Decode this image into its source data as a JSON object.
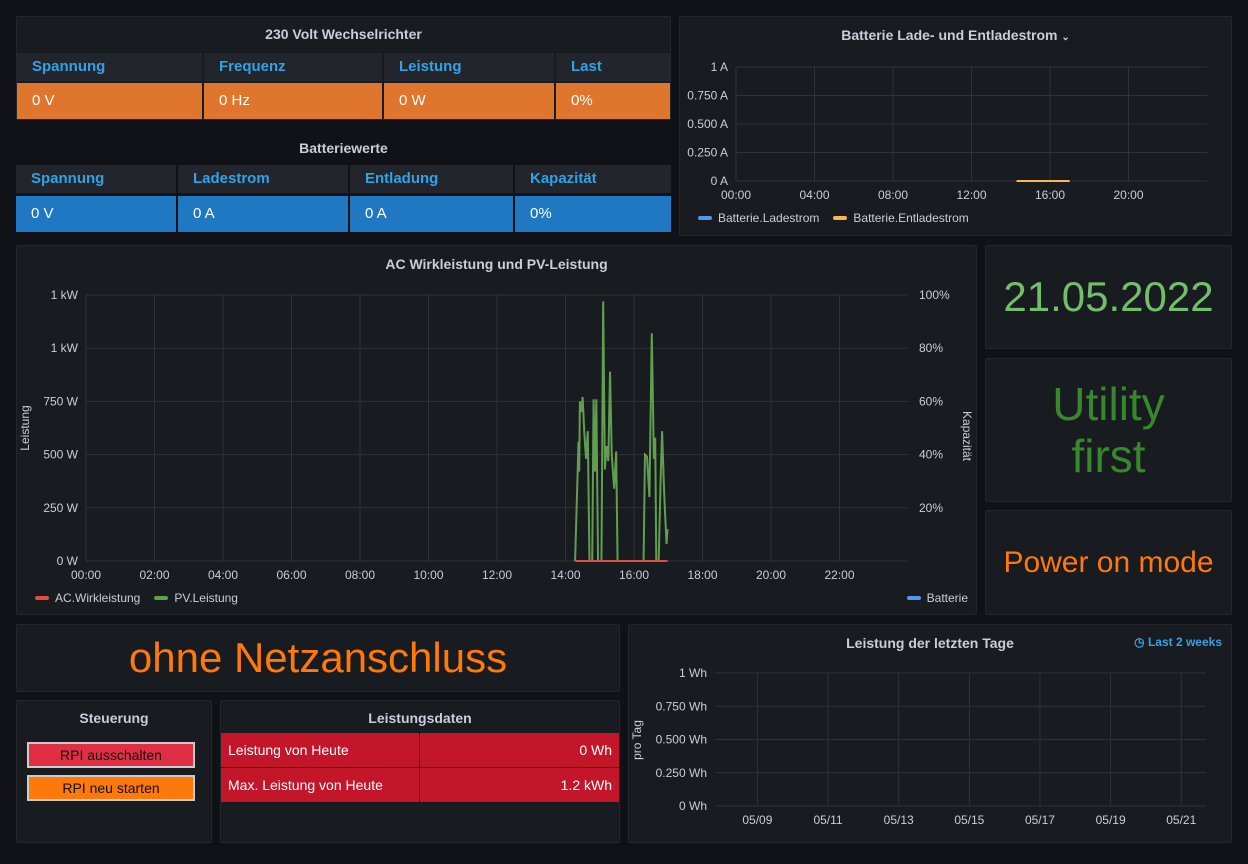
{
  "inverter": {
    "title": "230 Volt Wechselrichter",
    "headers": [
      "Spannung",
      "Frequenz",
      "Leistung",
      "Last"
    ],
    "values": [
      "0 V",
      "0 Hz",
      "0 W",
      "0%"
    ],
    "color": "#e0752d"
  },
  "battery_values": {
    "title": "Batteriewerte",
    "headers": [
      "Spannung",
      "Ladestrom",
      "Entladung",
      "Kapazität"
    ],
    "values": [
      "0 V",
      "0 A",
      "0 A",
      "0%"
    ],
    "color": "#1f78c1"
  },
  "date_panel": {
    "value": "21.05.2022",
    "color": "#73bf69"
  },
  "mode_panel": {
    "value": "Utility first",
    "color": "#37872d"
  },
  "power_mode": {
    "value": "Power on mode",
    "color": "#ff780a"
  },
  "grid_panel": {
    "value": "ohne Netzanschluss",
    "color": "#ff780a"
  },
  "control": {
    "title": "Steuerung",
    "buttons": [
      "RPI ausschalten",
      "RPI neu starten"
    ],
    "colors": [
      "#e02f44",
      "#ff780a"
    ]
  },
  "power_data": {
    "title": "Leistungsdaten",
    "rows": [
      {
        "label": "Leistung von Heute",
        "value": "0 Wh"
      },
      {
        "label": "Max. Leistung von Heute",
        "value": "1.2 kWh"
      }
    ],
    "color": "#c4162a"
  },
  "chart_data": [
    {
      "type": "line",
      "title": "Batterie Lade- und Entladestrom",
      "menu_icon": "chevron-down-icon",
      "ylim": [
        0,
        1
      ],
      "yticks": [
        "0 A",
        "0.250 A",
        "0.500 A",
        "0.750 A",
        "1 A"
      ],
      "xlim_hours": [
        0,
        24
      ],
      "xticks": [
        "00:00",
        "04:00",
        "08:00",
        "12:00",
        "16:00",
        "20:00"
      ],
      "grid": true,
      "legend": "bottom-left",
      "series": [
        {
          "name": "Batterie.Ladestrom",
          "color": "#5794f2",
          "x": [
            14.3,
            17
          ],
          "y": [
            0,
            0
          ]
        },
        {
          "name": "Batterie.Entladestrom",
          "color": "#ffb357",
          "x": [
            14.3,
            17
          ],
          "y": [
            0,
            0
          ]
        }
      ]
    },
    {
      "type": "line",
      "title": "AC Wirkleistung und PV-Leistung",
      "ylabel": "Leistung",
      "y2label": "Kapazität",
      "ylim": [
        0,
        1250
      ],
      "yticks": [
        "0 W",
        "250 W",
        "500 W",
        "750 W",
        "1 kW",
        "1 kW"
      ],
      "y2ticks": [
        "20%",
        "40%",
        "60%",
        "80%",
        "100%"
      ],
      "xlim_hours": [
        0,
        24
      ],
      "xticks": [
        "00:00",
        "02:00",
        "04:00",
        "06:00",
        "08:00",
        "10:00",
        "12:00",
        "14:00",
        "16:00",
        "18:00",
        "20:00",
        "22:00"
      ],
      "grid": true,
      "legend": "bottom",
      "series": [
        {
          "name": "AC.Wirkleistung",
          "color": "#e24d42",
          "x": [
            14.28,
            16.98
          ],
          "y": [
            0,
            0
          ]
        },
        {
          "name": "PV.Leistung",
          "color": "#629e51",
          "x": [
            14.28,
            14.38,
            14.4,
            14.42,
            14.46,
            14.5,
            14.55,
            14.6,
            14.65,
            14.7,
            14.78,
            14.82,
            14.86,
            14.9,
            14.95,
            15.05,
            15.1,
            15.15,
            15.2,
            15.25,
            15.3,
            15.35,
            15.42,
            15.48,
            15.52,
            16.28,
            16.32,
            16.38,
            16.45,
            16.52,
            16.58,
            16.62,
            16.65,
            16.72,
            16.78,
            16.82,
            16.88,
            16.95,
            16.98
          ],
          "y": [
            0,
            560,
            420,
            750,
            700,
            770,
            600,
            480,
            610,
            0,
            0,
            760,
            420,
            760,
            0,
            0,
            1220,
            430,
            540,
            470,
            890,
            500,
            340,
            515,
            0,
            0,
            500,
            490,
            300,
            1070,
            480,
            580,
            0,
            0,
            400,
            610,
            320,
            80,
            150
          ]
        },
        {
          "name": "Batterie",
          "color": "#5794f2",
          "axis": "right",
          "x": [],
          "y": []
        }
      ]
    },
    {
      "type": "bar",
      "title": "Leistung der letzten Tage",
      "time_range": "Last 2 weeks",
      "ylabel": "pro Tag",
      "ylim": [
        0,
        1
      ],
      "yticks": [
        "0 Wh",
        "0.250 Wh",
        "0.500 Wh",
        "0.750 Wh",
        "1 Wh"
      ],
      "xticks": [
        "05/09",
        "05/11",
        "05/13",
        "05/15",
        "05/17",
        "05/19",
        "05/21"
      ],
      "grid": true,
      "values": []
    }
  ]
}
